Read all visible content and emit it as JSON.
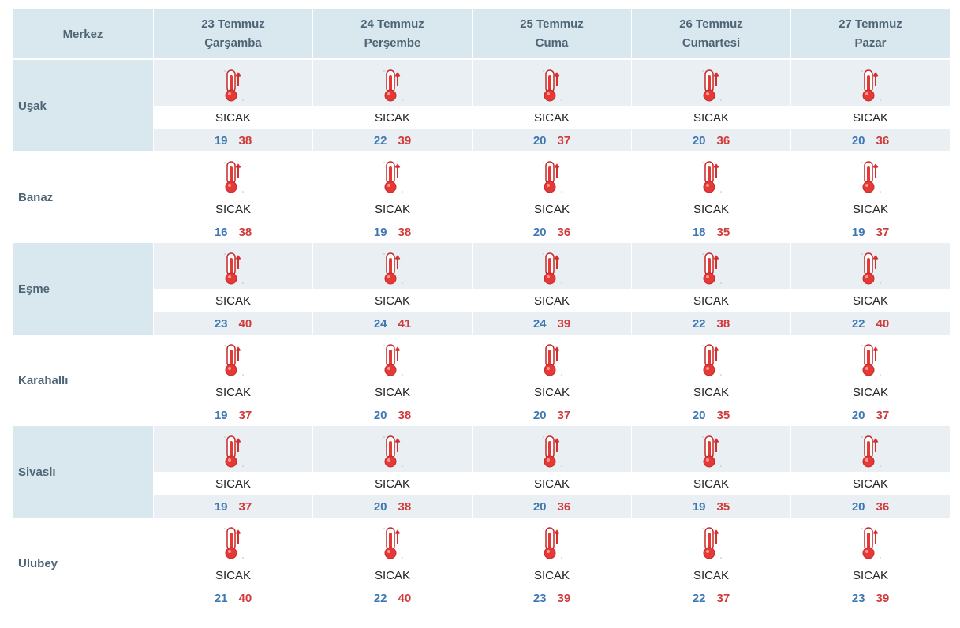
{
  "header": {
    "corner_label": "Merkez",
    "days": [
      {
        "date": "23 Temmuz",
        "weekday": "Çarşamba"
      },
      {
        "date": "24 Temmuz",
        "weekday": "Perşembe"
      },
      {
        "date": "25 Temmuz",
        "weekday": "Cuma"
      },
      {
        "date": "26 Temmuz",
        "weekday": "Cumartesi"
      },
      {
        "date": "27 Temmuz",
        "weekday": "Pazar"
      }
    ]
  },
  "icon": "thermometer-hot-icon",
  "colors": {
    "min_temp": "#3d78b3",
    "max_temp": "#d13a3a",
    "header_bg": "#d9e7ef"
  },
  "rows": [
    {
      "name": "Uşak",
      "days": [
        {
          "condition": "SICAK",
          "min": "19",
          "max": "38"
        },
        {
          "condition": "SICAK",
          "min": "22",
          "max": "39"
        },
        {
          "condition": "SICAK",
          "min": "20",
          "max": "37"
        },
        {
          "condition": "SICAK",
          "min": "20",
          "max": "36"
        },
        {
          "condition": "SICAK",
          "min": "20",
          "max": "36"
        }
      ]
    },
    {
      "name": "Banaz",
      "days": [
        {
          "condition": "SICAK",
          "min": "16",
          "max": "38"
        },
        {
          "condition": "SICAK",
          "min": "19",
          "max": "38"
        },
        {
          "condition": "SICAK",
          "min": "20",
          "max": "36"
        },
        {
          "condition": "SICAK",
          "min": "18",
          "max": "35"
        },
        {
          "condition": "SICAK",
          "min": "19",
          "max": "37"
        }
      ]
    },
    {
      "name": "Eşme",
      "days": [
        {
          "condition": "SICAK",
          "min": "23",
          "max": "40"
        },
        {
          "condition": "SICAK",
          "min": "24",
          "max": "41"
        },
        {
          "condition": "SICAK",
          "min": "24",
          "max": "39"
        },
        {
          "condition": "SICAK",
          "min": "22",
          "max": "38"
        },
        {
          "condition": "SICAK",
          "min": "22",
          "max": "40"
        }
      ]
    },
    {
      "name": "Karahallı",
      "days": [
        {
          "condition": "SICAK",
          "min": "19",
          "max": "37"
        },
        {
          "condition": "SICAK",
          "min": "20",
          "max": "38"
        },
        {
          "condition": "SICAK",
          "min": "20",
          "max": "37"
        },
        {
          "condition": "SICAK",
          "min": "20",
          "max": "35"
        },
        {
          "condition": "SICAK",
          "min": "20",
          "max": "37"
        }
      ]
    },
    {
      "name": "Sivaslı",
      "days": [
        {
          "condition": "SICAK",
          "min": "19",
          "max": "37"
        },
        {
          "condition": "SICAK",
          "min": "20",
          "max": "38"
        },
        {
          "condition": "SICAK",
          "min": "20",
          "max": "36"
        },
        {
          "condition": "SICAK",
          "min": "19",
          "max": "35"
        },
        {
          "condition": "SICAK",
          "min": "20",
          "max": "36"
        }
      ]
    },
    {
      "name": "Ulubey",
      "days": [
        {
          "condition": "SICAK",
          "min": "21",
          "max": "40"
        },
        {
          "condition": "SICAK",
          "min": "22",
          "max": "40"
        },
        {
          "condition": "SICAK",
          "min": "23",
          "max": "39"
        },
        {
          "condition": "SICAK",
          "min": "22",
          "max": "37"
        },
        {
          "condition": "SICAK",
          "min": "23",
          "max": "39"
        }
      ]
    }
  ]
}
